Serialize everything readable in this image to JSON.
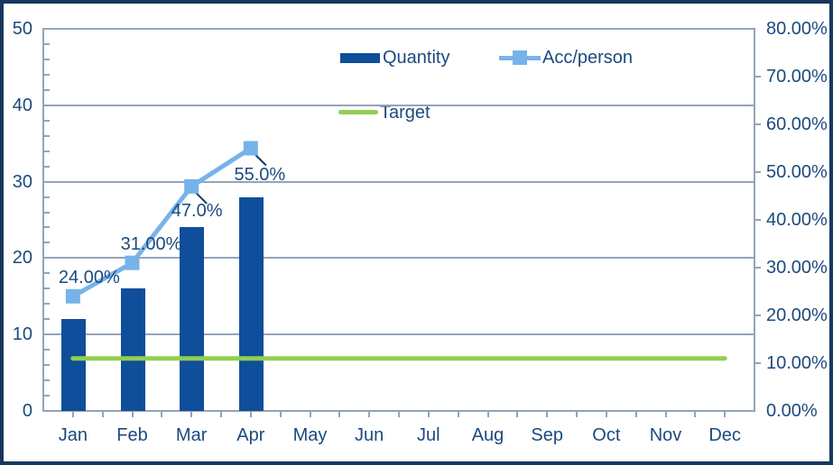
{
  "chart_data": {
    "type": "combo",
    "title": "",
    "categories": [
      "Jan",
      "Feb",
      "Mar",
      "Apr",
      "May",
      "Jun",
      "Jul",
      "Aug",
      "Sep",
      "Oct",
      "Nov",
      "Dec"
    ],
    "series": [
      {
        "name": "Quantity",
        "type": "bar",
        "axis": "left",
        "color": "#0F4E9A",
        "values": [
          12,
          16,
          24,
          28
        ]
      },
      {
        "name": "Acc/person",
        "type": "line",
        "axis": "right",
        "color": "#77B3EA",
        "values_percent": [
          24,
          31,
          47,
          55
        ],
        "point_labels": [
          "24.00%",
          "31.00%",
          "47.0%",
          "55.0%"
        ]
      },
      {
        "name": "Target",
        "type": "line",
        "axis": "right",
        "color": "#92D050",
        "value_percent": 11
      }
    ],
    "axes": {
      "left": {
        "min": 0,
        "max": 50,
        "tick_values": [
          0,
          10,
          20,
          30,
          40,
          50
        ],
        "tick_labels": [
          "0",
          "10",
          "20",
          "30",
          "40",
          "50"
        ],
        "minor_tick_step": 2
      },
      "right": {
        "min": 0,
        "max": 80,
        "tick_values": [
          0,
          10,
          20,
          30,
          40,
          50,
          60,
          70,
          80
        ],
        "tick_labels": [
          "0.00%",
          "10.00%",
          "20.00%",
          "30.00%",
          "40.00%",
          "50.00%",
          "60.00%",
          "70.00%",
          "80.00%"
        ]
      }
    },
    "grid": true,
    "legend_position": "top-center"
  },
  "colors": {
    "text": "#1B4A7E",
    "axis_gray": "#95A3B8",
    "frame_border": "#17375E",
    "leader_line": "#17375E",
    "background": "#FFFFFF"
  }
}
